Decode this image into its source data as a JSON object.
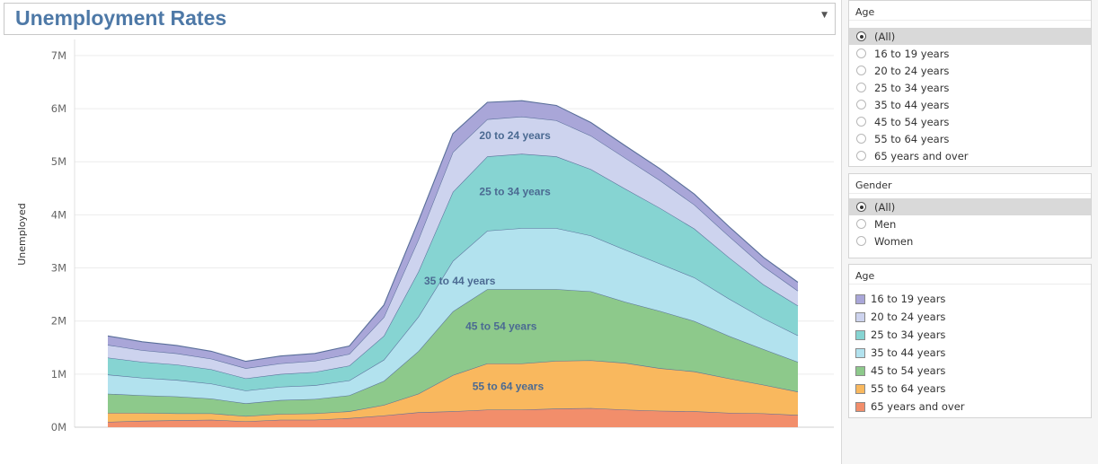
{
  "title": "Unemployment Rates",
  "chart_data": {
    "type": "area",
    "stacked": true,
    "title": "Unemployment Rates",
    "xlabel": "",
    "ylabel": "Unemployed",
    "ylim": [
      0,
      7100000
    ],
    "yticks": [
      0,
      1000000,
      2000000,
      3000000,
      4000000,
      5000000,
      6000000,
      7000000
    ],
    "ytick_labels": [
      "0M",
      "1M",
      "2M",
      "3M",
      "4M",
      "5M",
      "6M",
      "7M"
    ],
    "grid": true,
    "x": [
      0,
      5,
      10,
      15,
      20,
      25,
      30,
      35,
      40,
      45,
      50,
      55,
      60,
      65,
      70,
      75,
      80,
      85,
      90,
      95,
      100
    ],
    "series": [
      {
        "name": "65 years and over",
        "color": "#f28e6b",
        "values": [
          100000,
          120000,
          130000,
          140000,
          110000,
          140000,
          140000,
          170000,
          220000,
          280000,
          300000,
          330000,
          330000,
          350000,
          360000,
          330000,
          310000,
          300000,
          270000,
          260000,
          230000
        ]
      },
      {
        "name": "55 to 64 years",
        "color": "#f9b85e",
        "values": [
          170000,
          150000,
          130000,
          120000,
          100000,
          110000,
          120000,
          130000,
          200000,
          350000,
          680000,
          870000,
          870000,
          900000,
          900000,
          880000,
          800000,
          750000,
          650000,
          540000,
          440000
        ]
      },
      {
        "name": "45 to 54 years",
        "color": "#8dc98b",
        "values": [
          360000,
          330000,
          320000,
          280000,
          240000,
          260000,
          270000,
          300000,
          450000,
          800000,
          1200000,
          1400000,
          1400000,
          1350000,
          1300000,
          1150000,
          1080000,
          950000,
          800000,
          670000,
          560000
        ]
      },
      {
        "name": "35 to 44 years",
        "color": "#b2e2ee",
        "values": [
          360000,
          330000,
          310000,
          280000,
          240000,
          250000,
          260000,
          280000,
          400000,
          650000,
          950000,
          1100000,
          1150000,
          1150000,
          1050000,
          980000,
          890000,
          820000,
          700000,
          580000,
          500000
        ]
      },
      {
        "name": "25 to 34 years",
        "color": "#86d4d2",
        "values": [
          320000,
          300000,
          290000,
          270000,
          230000,
          240000,
          250000,
          280000,
          450000,
          850000,
          1300000,
          1400000,
          1400000,
          1350000,
          1250000,
          1150000,
          1050000,
          920000,
          780000,
          640000,
          560000
        ]
      },
      {
        "name": "20 to 24 years",
        "color": "#cdd3ee",
        "values": [
          240000,
          220000,
          210000,
          200000,
          190000,
          200000,
          210000,
          220000,
          350000,
          600000,
          750000,
          700000,
          700000,
          680000,
          630000,
          580000,
          520000,
          450000,
          400000,
          340000,
          280000
        ]
      },
      {
        "name": "16 to 19 years",
        "color": "#a9a6d8",
        "values": [
          170000,
          160000,
          150000,
          140000,
          130000,
          140000,
          140000,
          150000,
          230000,
          350000,
          350000,
          320000,
          300000,
          280000,
          250000,
          230000,
          220000,
          200000,
          180000,
          170000,
          160000
        ]
      }
    ],
    "annotations": [
      {
        "text": "20 to 24 years",
        "series": "20 to 24 years",
        "x": 59
      },
      {
        "text": "25 to 34 years",
        "series": "25 to 34 years",
        "x": 59
      },
      {
        "text": "35 to 44 years",
        "series": "35 to 44 years",
        "x": 51
      },
      {
        "text": "45 to 54 years",
        "series": "45 to 54 years",
        "x": 57
      },
      {
        "text": "55 to 64 years",
        "series": "55 to 64 years",
        "x": 58
      }
    ]
  },
  "filters": {
    "age": {
      "title": "Age",
      "selected": "(All)",
      "options": [
        "(All)",
        "16 to 19 years",
        "20 to 24 years",
        "25 to 34 years",
        "35 to 44 years",
        "45 to 54 years",
        "55 to 64 years",
        "65 years and over"
      ]
    },
    "gender": {
      "title": "Gender",
      "selected": "(All)",
      "options": [
        "(All)",
        "Men",
        "Women"
      ]
    }
  },
  "legend": {
    "title": "Age",
    "items": [
      {
        "label": "16 to 19 years",
        "color": "#a9a6d8"
      },
      {
        "label": "20 to 24 years",
        "color": "#cdd3ee"
      },
      {
        "label": "25 to 34 years",
        "color": "#86d4d2"
      },
      {
        "label": "35 to 44 years",
        "color": "#b2e2ee"
      },
      {
        "label": "45 to 54 years",
        "color": "#8dc98b"
      },
      {
        "label": "55 to 64 years",
        "color": "#f9b85e"
      },
      {
        "label": "65 years and over",
        "color": "#f28e6b"
      }
    ]
  }
}
